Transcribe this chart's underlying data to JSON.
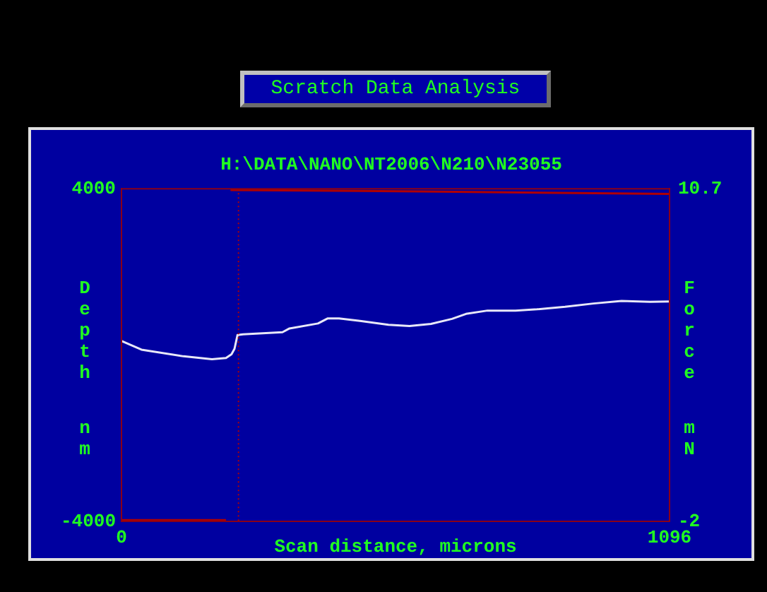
{
  "chart_data": {
    "type": "line",
    "title": "Scratch Data Analysis",
    "subtitle": "H:\\DATA\\NANO\\NT2006\\N210\\N23055",
    "xlabel": "Scan distance, microns",
    "ylabel": "Depth nm",
    "y2label": "Force mN",
    "xlim": [
      0,
      1096
    ],
    "xticks": [
      0,
      1096
    ],
    "ylim": [
      -4000,
      4000
    ],
    "yticks": [
      -4000,
      4000
    ],
    "y2lim": [
      -2,
      10.7
    ],
    "y2ticks": [
      -2,
      10.7
    ],
    "grid": false,
    "legend": false,
    "marker": "none",
    "line_style": "solid",
    "series": [
      {
        "color": "#e8e8f8",
        "x": [
          0,
          40,
          124,
          181,
          209,
          220,
          226,
          232,
          243,
          322,
          336,
          393,
          412,
          435,
          477,
          534,
          576,
          619,
          661,
          689,
          732,
          788,
          831,
          887,
          944,
          1000,
          1057,
          1096
        ],
        "values": [
          340,
          130,
          -30,
          -100,
          -70,
          20,
          150,
          480,
          500,
          550,
          640,
          760,
          880,
          880,
          820,
          730,
          700,
          750,
          870,
          990,
          1070,
          1070,
          1100,
          1160,
          1240,
          1300,
          1280,
          1290
        ]
      },
      {
        "color": "#b00000",
        "axis": "y2",
        "x": [
          0,
          209,
          214,
          218,
          600,
          1096
        ],
        "values": [
          -1.95,
          -1.95,
          null,
          10.65,
          10.6,
          10.5
        ]
      }
    ],
    "ref_lines": [
      {
        "axis": "x",
        "value": 234,
        "color": "#b00000",
        "line_style": "dotted"
      }
    ]
  }
}
